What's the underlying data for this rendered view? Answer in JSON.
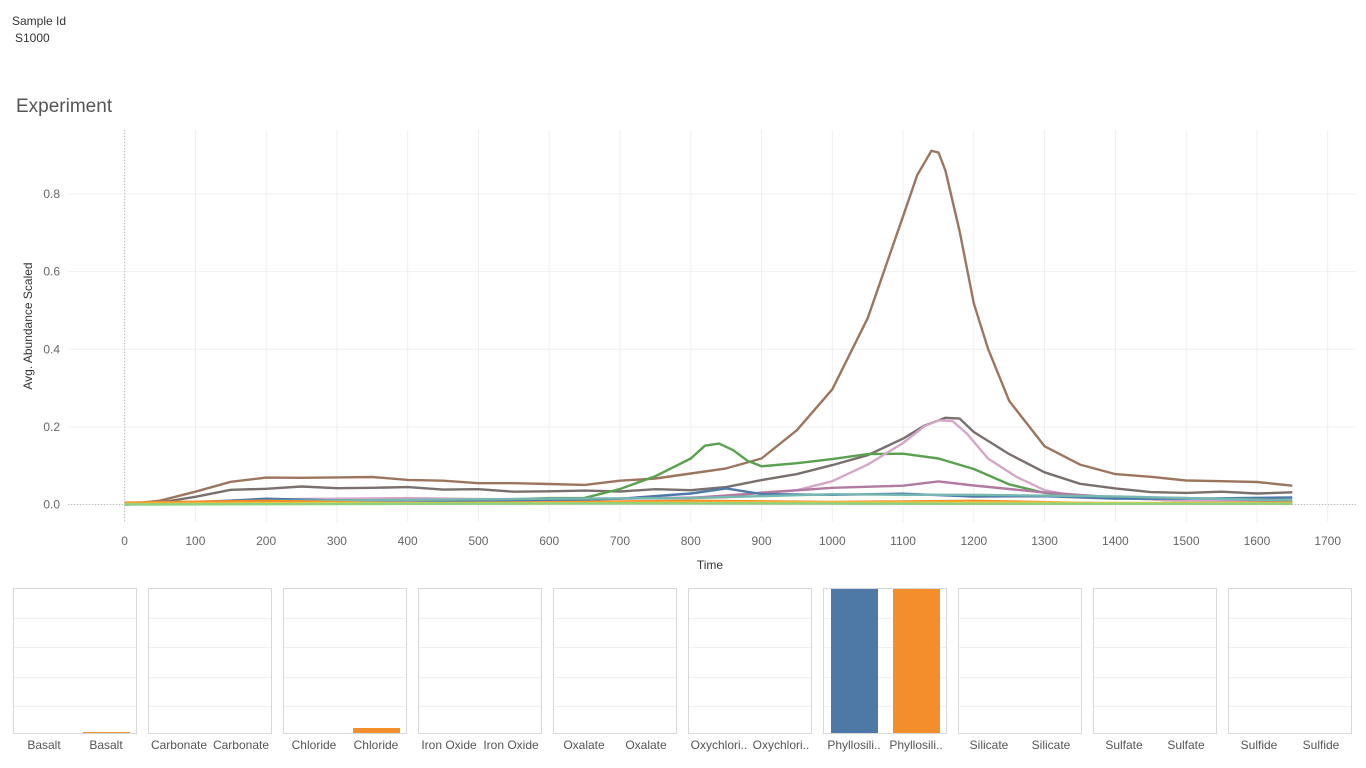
{
  "filter": {
    "title": "Sample Id",
    "value": "S1000"
  },
  "sheet": {
    "title": "Experiment"
  },
  "colors": {
    "blue": "#4e79a7",
    "orange": "#f28e2b"
  },
  "chart_data": [
    {
      "type": "line",
      "title": "Experiment",
      "xlabel": "Time",
      "ylabel": "Avg. Abundance Scaled",
      "xlim": [
        -80,
        1740
      ],
      "ylim": [
        -0.045,
        0.965
      ],
      "xticks": [
        "0",
        "100",
        "200",
        "300",
        "400",
        "500",
        "600",
        "700",
        "800",
        "900",
        "1000",
        "1100",
        "1200",
        "1300",
        "1400",
        "1500",
        "1600",
        "1700"
      ],
      "yticks": [
        "0.0",
        "0.2",
        "0.4",
        "0.6",
        "0.8"
      ],
      "grid": true,
      "series": [
        {
          "color": "#9c755f",
          "x": [
            0,
            50,
            100,
            150,
            200,
            250,
            300,
            350,
            400,
            450,
            500,
            550,
            600,
            650,
            700,
            750,
            800,
            850,
            900,
            950,
            1000,
            1050,
            1100,
            1120,
            1140,
            1150,
            1160,
            1180,
            1200,
            1220,
            1250,
            1300,
            1350,
            1400,
            1450,
            1500,
            1550,
            1600,
            1650
          ],
          "y": [
            0.0,
            0.01,
            0.03,
            0.06,
            0.068,
            0.072,
            0.07,
            0.068,
            0.065,
            0.06,
            0.058,
            0.055,
            0.05,
            0.052,
            0.06,
            0.07,
            0.08,
            0.09,
            0.12,
            0.19,
            0.3,
            0.48,
            0.74,
            0.85,
            0.91,
            0.91,
            0.86,
            0.7,
            0.52,
            0.4,
            0.27,
            0.15,
            0.1,
            0.08,
            0.07,
            0.065,
            0.06,
            0.055,
            0.05
          ]
        },
        {
          "color": "#79706e",
          "x": [
            0,
            50,
            100,
            150,
            200,
            250,
            300,
            350,
            400,
            450,
            500,
            550,
            600,
            650,
            700,
            750,
            800,
            850,
            900,
            950,
            1000,
            1050,
            1100,
            1130,
            1160,
            1180,
            1200,
            1250,
            1300,
            1350,
            1400,
            1450,
            1500,
            1550,
            1600,
            1650
          ],
          "y": [
            0.0,
            0.005,
            0.02,
            0.035,
            0.042,
            0.045,
            0.045,
            0.043,
            0.042,
            0.04,
            0.038,
            0.036,
            0.034,
            0.033,
            0.035,
            0.038,
            0.04,
            0.045,
            0.06,
            0.08,
            0.1,
            0.13,
            0.17,
            0.2,
            0.225,
            0.22,
            0.19,
            0.13,
            0.08,
            0.055,
            0.04,
            0.035,
            0.03,
            0.03,
            0.03,
            0.03
          ]
        },
        {
          "color": "#59a14f",
          "x": [
            0,
            100,
            200,
            300,
            400,
            500,
            600,
            650,
            700,
            750,
            800,
            820,
            840,
            860,
            880,
            900,
            950,
            1000,
            1050,
            1100,
            1150,
            1200,
            1250,
            1300,
            1400,
            1500,
            1650
          ],
          "y": [
            0.0,
            0.005,
            0.01,
            0.01,
            0.01,
            0.012,
            0.015,
            0.02,
            0.04,
            0.07,
            0.12,
            0.15,
            0.16,
            0.14,
            0.11,
            0.1,
            0.105,
            0.12,
            0.13,
            0.128,
            0.12,
            0.09,
            0.055,
            0.03,
            0.015,
            0.01,
            0.005
          ]
        },
        {
          "color": "#d4a6c8",
          "x": [
            0,
            200,
            400,
            600,
            700,
            800,
            850,
            900,
            950,
            1000,
            1050,
            1100,
            1130,
            1150,
            1170,
            1190,
            1220,
            1260,
            1300,
            1350,
            1400,
            1500,
            1650
          ],
          "y": [
            0.0,
            0.015,
            0.015,
            0.015,
            0.015,
            0.015,
            0.02,
            0.03,
            0.04,
            0.06,
            0.1,
            0.16,
            0.2,
            0.22,
            0.215,
            0.18,
            0.12,
            0.07,
            0.04,
            0.02,
            0.015,
            0.01,
            0.01
          ]
        },
        {
          "color": "#b07aa1",
          "x": [
            0,
            200,
            400,
            600,
            800,
            900,
            1000,
            1100,
            1150,
            1200,
            1250,
            1300,
            1400,
            1500,
            1650
          ],
          "y": [
            0.0,
            0.01,
            0.01,
            0.012,
            0.02,
            0.03,
            0.04,
            0.05,
            0.058,
            0.052,
            0.04,
            0.028,
            0.02,
            0.015,
            0.012
          ]
        },
        {
          "color": "#4e79a7",
          "x": [
            0,
            100,
            200,
            300,
            400,
            500,
            600,
            700,
            800,
            850,
            900,
            1000,
            1100,
            1200,
            1300,
            1400,
            1500,
            1650
          ],
          "y": [
            0.0,
            0.005,
            0.012,
            0.012,
            0.01,
            0.01,
            0.01,
            0.012,
            0.03,
            0.04,
            0.03,
            0.025,
            0.025,
            0.022,
            0.02,
            0.018,
            0.015,
            0.015
          ]
        },
        {
          "color": "#76b7b2",
          "x": [
            0,
            200,
            400,
            600,
            800,
            1000,
            1100,
            1200,
            1400,
            1650
          ],
          "y": [
            0.0,
            0.012,
            0.012,
            0.012,
            0.018,
            0.025,
            0.028,
            0.025,
            0.018,
            0.012
          ]
        },
        {
          "color": "#f28e2b",
          "x": [
            0,
            200,
            400,
            600,
            800,
            1000,
            1200,
            1400,
            1650
          ],
          "y": [
            0.005,
            0.008,
            0.006,
            0.006,
            0.007,
            0.008,
            0.008,
            0.006,
            0.005
          ]
        },
        {
          "color": "#edc948",
          "x": [
            0,
            300,
            600,
            900,
            1200,
            1500,
            1650
          ],
          "y": [
            0.002,
            0.004,
            0.004,
            0.005,
            0.005,
            0.004,
            0.003
          ]
        },
        {
          "color": "#8cd17d",
          "x": [
            0,
            400,
            800,
            1200,
            1650
          ],
          "y": [
            0.0,
            0.002,
            0.003,
            0.002,
            0.002
          ]
        }
      ]
    },
    {
      "type": "bar",
      "panels": [
        {
          "labels": [
            "Basalt",
            "Basalt"
          ],
          "values": [
            0,
            0.01
          ]
        },
        {
          "labels": [
            "Carbonate",
            "Carbonate"
          ],
          "values": [
            0,
            0
          ]
        },
        {
          "labels": [
            "Chloride",
            "Chloride"
          ],
          "values": [
            0,
            0.035
          ]
        },
        {
          "labels": [
            "Iron Oxide",
            "Iron Oxide"
          ],
          "values": [
            0,
            0
          ]
        },
        {
          "labels": [
            "Oxalate",
            "Oxalate"
          ],
          "values": [
            0,
            0
          ]
        },
        {
          "labels": [
            "Oxychlori..",
            "Oxychlori.."
          ],
          "values": [
            0,
            0
          ]
        },
        {
          "labels": [
            "Phyllosili..",
            "Phyllosili.."
          ],
          "values": [
            1.0,
            1.0
          ]
        },
        {
          "labels": [
            "Silicate",
            "Silicate"
          ],
          "values": [
            0,
            0
          ]
        },
        {
          "labels": [
            "Sulfate",
            "Sulfate"
          ],
          "values": [
            0,
            0
          ]
        },
        {
          "labels": [
            "Sulfide",
            "Sulfide"
          ],
          "values": [
            0,
            0
          ]
        }
      ]
    }
  ]
}
